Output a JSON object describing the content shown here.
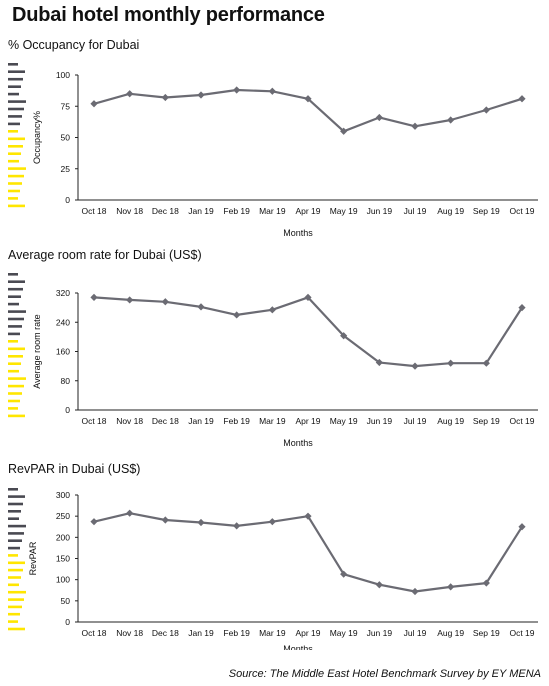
{
  "title": "Dubai hotel monthly performance",
  "source": "Source: The Middle East Hotel Benchmark Survey by EY MENA",
  "colors": {
    "line": "#6b6b73",
    "accent": "#ffe600",
    "stripe_dark": "#4a4a52"
  },
  "chart_data": [
    {
      "type": "line",
      "title": "% Occupancy for Dubai",
      "xlabel": "Months",
      "ylabel": "Occupancy%",
      "categories": [
        "Oct 18",
        "Nov 18",
        "Dec 18",
        "Jan 19",
        "Feb 19",
        "Mar 19",
        "Apr 19",
        "May 19",
        "Jun 19",
        "Jul 19",
        "Aug 19",
        "Sep 19",
        "Oct 19"
      ],
      "values": [
        77,
        85,
        82,
        84,
        88,
        87,
        81,
        55,
        66,
        59,
        64,
        72,
        81
      ],
      "ylim": [
        0,
        100
      ],
      "yticks": [
        0,
        25,
        50,
        75,
        100
      ]
    },
    {
      "type": "line",
      "title": "Average room rate for Dubai (US$)",
      "xlabel": "Months",
      "ylabel": "Average room rate",
      "categories": [
        "Oct 18",
        "Nov 18",
        "Dec 18",
        "Jan 19",
        "Feb 19",
        "Mar 19",
        "Apr 19",
        "May 19",
        "Jun 19",
        "Jul 19",
        "Aug 19",
        "Sep 19",
        "Oct 19"
      ],
      "values": [
        308,
        301,
        296,
        282,
        260,
        274,
        308,
        203,
        130,
        120,
        128,
        128,
        280
      ],
      "ylim": [
        0,
        320
      ],
      "yticks": [
        0,
        80,
        160,
        240,
        320
      ]
    },
    {
      "type": "line",
      "title": "RevPAR in Dubai (US$)",
      "xlabel": "Months",
      "ylabel": "RevPAR",
      "categories": [
        "Oct 18",
        "Nov 18",
        "Dec 18",
        "Jan 19",
        "Feb 19",
        "Mar 19",
        "Apr 19",
        "May 19",
        "Jun 19",
        "Jul 19",
        "Aug 19",
        "Sep 19",
        "Oct 19"
      ],
      "values": [
        237,
        257,
        241,
        235,
        227,
        237,
        250,
        113,
        88,
        72,
        83,
        92,
        225
      ],
      "ylim": [
        0,
        300
      ],
      "yticks": [
        0,
        50,
        100,
        150,
        200,
        250,
        300
      ]
    }
  ]
}
